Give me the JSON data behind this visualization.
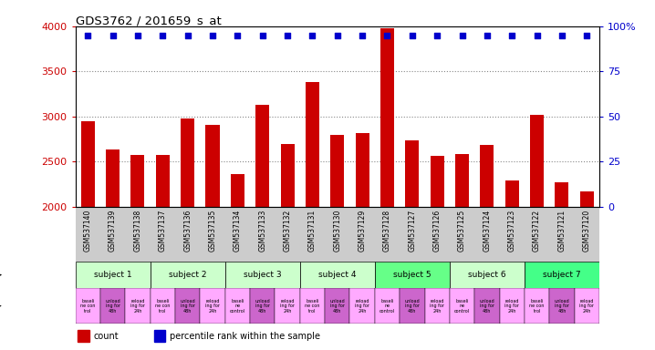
{
  "title": "GDS3762 / 201659_s_at",
  "samples": [
    "GSM537140",
    "GSM537139",
    "GSM537138",
    "GSM537137",
    "GSM537136",
    "GSM537135",
    "GSM537134",
    "GSM537133",
    "GSM537132",
    "GSM537131",
    "GSM537130",
    "GSM537129",
    "GSM537128",
    "GSM537127",
    "GSM537126",
    "GSM537125",
    "GSM537124",
    "GSM537123",
    "GSM537122",
    "GSM537121",
    "GSM537120"
  ],
  "counts": [
    2950,
    2630,
    2570,
    2570,
    2980,
    2910,
    2360,
    3130,
    2690,
    3380,
    2800,
    2820,
    3980,
    2730,
    2560,
    2580,
    2680,
    2290,
    3020,
    2270,
    2170
  ],
  "percentile_ranks": [
    95,
    95,
    95,
    95,
    95,
    95,
    95,
    95,
    95,
    95,
    95,
    95,
    95,
    95,
    95,
    95,
    95,
    95,
    95,
    95,
    95
  ],
  "bar_color": "#cc0000",
  "dot_color": "#0000cc",
  "ymin": 2000,
  "ymax": 4000,
  "yticks": [
    2000,
    2500,
    3000,
    3500,
    4000
  ],
  "y2min": 0,
  "y2max": 100,
  "y2ticks": [
    0,
    25,
    50,
    75,
    100
  ],
  "subjects": [
    {
      "label": "subject 1",
      "start": 0,
      "end": 3,
      "color": "#ccffcc"
    },
    {
      "label": "subject 2",
      "start": 3,
      "end": 6,
      "color": "#ccffcc"
    },
    {
      "label": "subject 3",
      "start": 6,
      "end": 9,
      "color": "#ccffcc"
    },
    {
      "label": "subject 4",
      "start": 9,
      "end": 12,
      "color": "#ccffcc"
    },
    {
      "label": "subject 5",
      "start": 12,
      "end": 15,
      "color": "#66ff88"
    },
    {
      "label": "subject 6",
      "start": 15,
      "end": 18,
      "color": "#ccffcc"
    },
    {
      "label": "subject 7",
      "start": 18,
      "end": 21,
      "color": "#44ff88"
    }
  ],
  "proto_labels": [
    "baseli\nne con\ntrol",
    "unload\ning for\n48h",
    "reload\ning for\n24h",
    "baseli\nne con\ntrol",
    "unload\ning for\n48h",
    "reload\ning for\n24h",
    "baseli\nne\ncontrol",
    "unload\ning for\n48h",
    "reload\ning for\n24h",
    "baseli\nne con\ntrol",
    "unload\ning for\n48h",
    "reload\ning for\n24h",
    "baseli\nne\ncontrol",
    "unload\ning for\n48h",
    "reload\ning for\n24h",
    "baseli\nne\ncontrol",
    "unload\ning for\n48h",
    "reload\ning for\n24h",
    "baseli\nne con\ntrol",
    "unload\ning for\n48h",
    "reload\ning for\n24h"
  ],
  "proto_color_light": "#ffaaff",
  "proto_color_dark": "#cc66cc",
  "bg_color": "#ffffff",
  "grid_color": "#888888",
  "ytick_color": "#cc0000",
  "y2tick_color": "#0000cc",
  "sample_bg_color": "#cccccc",
  "subj_border_color": "#000000"
}
